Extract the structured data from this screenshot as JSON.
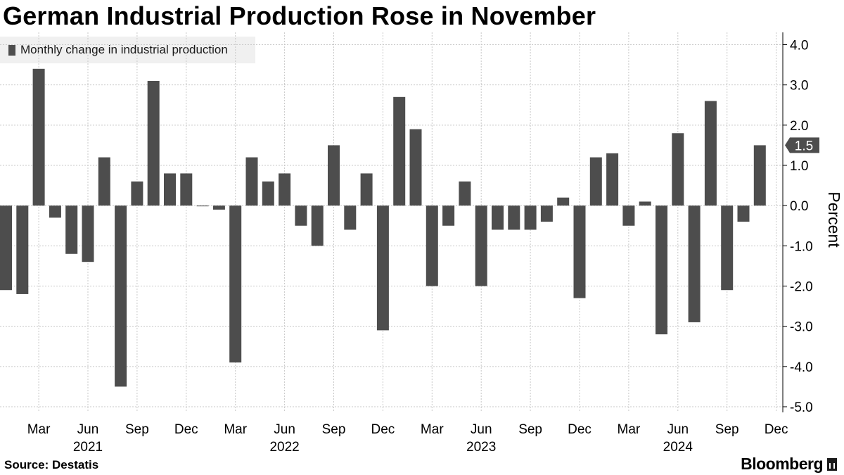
{
  "title": "German Industrial Production Rose in November",
  "footer": {
    "source": "Source: Destatis",
    "brand": "Bloomberg"
  },
  "colors": {
    "bar": "#4d4d4d",
    "grid": "#c8c8c8",
    "axis": "#000000",
    "callout": "#4d4d4d"
  },
  "chart_data": {
    "type": "bar",
    "legend": "Monthly change in industrial production",
    "ylabel": "Percent",
    "ylim": [
      -5.0,
      4.0
    ],
    "yticks": [
      {
        "value": 4.0,
        "label": "4.0"
      },
      {
        "value": 3.0,
        "label": "3.0"
      },
      {
        "value": 2.0,
        "label": "2.0"
      },
      {
        "value": 1.0,
        "label": "1.0"
      },
      {
        "value": 0.0,
        "label": "0.0"
      },
      {
        "value": -1.0,
        "label": "-1.0"
      },
      {
        "value": -2.0,
        "label": "-2.0"
      },
      {
        "value": -3.0,
        "label": "-3.0"
      },
      {
        "value": -4.0,
        "label": "-4.0"
      },
      {
        "value": -5.0,
        "label": "-5.0"
      }
    ],
    "month_ticks": [
      {
        "index": 2,
        "label": "Mar"
      },
      {
        "index": 5,
        "label": "Jun"
      },
      {
        "index": 8,
        "label": "Sep"
      },
      {
        "index": 11,
        "label": "Dec"
      },
      {
        "index": 14,
        "label": "Mar"
      },
      {
        "index": 17,
        "label": "Jun"
      },
      {
        "index": 20,
        "label": "Sep"
      },
      {
        "index": 23,
        "label": "Dec"
      },
      {
        "index": 26,
        "label": "Mar"
      },
      {
        "index": 29,
        "label": "Jun"
      },
      {
        "index": 32,
        "label": "Sep"
      },
      {
        "index": 35,
        "label": "Dec"
      },
      {
        "index": 38,
        "label": "Mar"
      },
      {
        "index": 41,
        "label": "Jun"
      },
      {
        "index": 44,
        "label": "Sep"
      },
      {
        "index": 47,
        "label": "Dec"
      }
    ],
    "year_labels": [
      {
        "index": 5,
        "label": "2021"
      },
      {
        "index": 17,
        "label": "2022"
      },
      {
        "index": 29,
        "label": "2023"
      },
      {
        "index": 41,
        "label": "2024"
      }
    ],
    "categories": [
      "Jan 2021",
      "Feb 2021",
      "Mar 2021",
      "Apr 2021",
      "May 2021",
      "Jun 2021",
      "Jul 2021",
      "Aug 2021",
      "Sep 2021",
      "Oct 2021",
      "Nov 2021",
      "Dec 2021",
      "Jan 2022",
      "Feb 2022",
      "Mar 2022",
      "Apr 2022",
      "May 2022",
      "Jun 2022",
      "Jul 2022",
      "Aug 2022",
      "Sep 2022",
      "Oct 2022",
      "Nov 2022",
      "Dec 2022",
      "Jan 2023",
      "Feb 2023",
      "Mar 2023",
      "Apr 2023",
      "May 2023",
      "Jun 2023",
      "Jul 2023",
      "Aug 2023",
      "Sep 2023",
      "Oct 2023",
      "Nov 2023",
      "Dec 2023",
      "Jan 2024",
      "Feb 2024",
      "Mar 2024",
      "Apr 2024",
      "May 2024",
      "Jun 2024",
      "Jul 2024",
      "Aug 2024",
      "Sep 2024",
      "Oct 2024",
      "Nov 2024"
    ],
    "values": [
      -2.1,
      -2.2,
      3.4,
      -0.3,
      -1.2,
      -1.4,
      1.2,
      -4.5,
      0.6,
      3.1,
      0.8,
      0.8,
      0.0,
      -0.1,
      -3.9,
      1.2,
      0.6,
      0.8,
      -0.5,
      -1.0,
      1.5,
      -0.6,
      0.8,
      -3.1,
      2.7,
      1.9,
      -2.0,
      -0.5,
      0.6,
      -2.0,
      -0.6,
      -0.6,
      -0.6,
      -0.4,
      0.2,
      -2.3,
      1.2,
      1.3,
      -0.5,
      0.1,
      -3.2,
      1.8,
      -2.9,
      2.6,
      -2.1,
      -0.4,
      1.5
    ],
    "latest_value_label": "1.5"
  }
}
